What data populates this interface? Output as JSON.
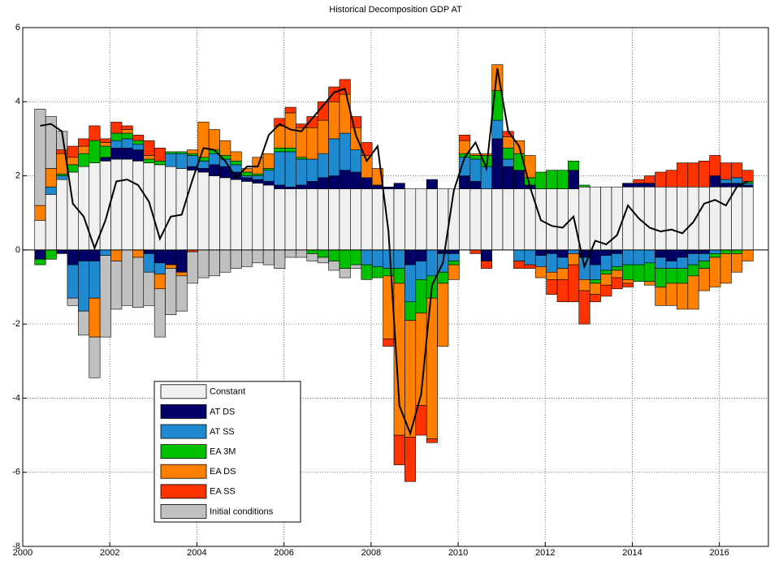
{
  "chart_data": {
    "type": "bar",
    "stacked": true,
    "title": "Historical Decomposition GDP AT",
    "x": [
      2000.4,
      2000.65,
      2000.9,
      2001.15,
      2001.4,
      2001.65,
      2001.9,
      2002.15,
      2002.4,
      2002.65,
      2002.9,
      2003.15,
      2003.4,
      2003.65,
      2003.9,
      2004.15,
      2004.4,
      2004.65,
      2004.9,
      2005.15,
      2005.4,
      2005.65,
      2005.9,
      2006.15,
      2006.4,
      2006.65,
      2006.9,
      2007.15,
      2007.4,
      2007.65,
      2007.9,
      2008.15,
      2008.4,
      2008.65,
      2008.9,
      2009.15,
      2009.4,
      2009.65,
      2009.9,
      2010.15,
      2010.4,
      2010.65,
      2010.9,
      2011.15,
      2011.4,
      2011.65,
      2011.9,
      2012.15,
      2012.4,
      2012.65,
      2012.9,
      2013.15,
      2013.4,
      2013.65,
      2013.9,
      2014.15,
      2014.4,
      2014.65,
      2014.9,
      2015.15,
      2015.4,
      2015.65,
      2015.9,
      2016.15,
      2016.4,
      2016.65
    ],
    "xlim": [
      2000,
      2017.125
    ],
    "xticks": [
      2000,
      2002,
      2004,
      2006,
      2008,
      2010,
      2012,
      2014,
      2016
    ],
    "ylim": [
      -8,
      6
    ],
    "yticks": [
      -8,
      -6,
      -4,
      -2,
      0,
      2,
      4,
      6
    ],
    "grid": true,
    "legend": "lower left",
    "series": [
      {
        "name": "Constant",
        "color": "#f0f0f0",
        "values": [
          0.8,
          1.5,
          1.9,
          2.1,
          2.25,
          2.35,
          2.4,
          2.45,
          2.45,
          2.4,
          2.35,
          2.3,
          2.25,
          2.2,
          2.15,
          2.1,
          2.0,
          1.95,
          1.9,
          1.85,
          1.8,
          1.75,
          1.65,
          1.65,
          1.65,
          1.65,
          1.65,
          1.65,
          1.65,
          1.65,
          1.65,
          1.65,
          1.65,
          1.65,
          1.65,
          1.65,
          1.65,
          1.65,
          1.65,
          1.65,
          1.65,
          1.65,
          1.65,
          1.65,
          1.65,
          1.65,
          1.65,
          1.65,
          1.65,
          1.65,
          1.7,
          1.7,
          1.7,
          1.7,
          1.7,
          1.7,
          1.7,
          1.7,
          1.7,
          1.7,
          1.7,
          1.7,
          1.7,
          1.7,
          1.7,
          1.7
        ]
      },
      {
        "name": "AT DS",
        "color": "#000066",
        "values": [
          -0.25,
          0,
          -0.1,
          -0.4,
          -0.3,
          -0.3,
          0.1,
          0.3,
          0.3,
          0.3,
          -0.1,
          -0.35,
          -0.4,
          -0.6,
          0.1,
          0.1,
          0.3,
          0.3,
          0.2,
          0.1,
          0.1,
          0.1,
          0.1,
          0.05,
          0.1,
          0.2,
          0.3,
          0.35,
          0.5,
          0.45,
          0.3,
          0.1,
          0.05,
          0.15,
          -0.4,
          -0.3,
          0.25,
          -0.1,
          -0.1,
          0.35,
          0.2,
          -0.3,
          1.35,
          0.6,
          0.5,
          0.1,
          -0.15,
          -0.1,
          -0.2,
          0.5,
          -0.2,
          -0.4,
          -0.15,
          -0.1,
          0.1,
          0.1,
          0.1,
          -0.2,
          -0.3,
          -0.2,
          -0.1,
          -0.1,
          0.3,
          0.1,
          0.1,
          0.05
        ]
      },
      {
        "name": "AT SS",
        "color": "#1f8ad0",
        "values": [
          0,
          0.2,
          0.1,
          -0.9,
          -1.35,
          -1.0,
          -0.15,
          0.2,
          0.25,
          0.15,
          -0.5,
          -0.3,
          0.35,
          0.4,
          0.3,
          0.2,
          0.3,
          0.2,
          0.2,
          0.05,
          0.1,
          0.3,
          0.9,
          0.95,
          0.7,
          0.6,
          0.65,
          1.0,
          1.0,
          0.6,
          -0.4,
          -0.45,
          -0.5,
          -0.5,
          -1.0,
          -0.5,
          -0.7,
          -0.5,
          -0.2,
          0.5,
          0.6,
          0.6,
          0.5,
          0.2,
          -0.3,
          -0.4,
          -0.3,
          -0.5,
          -0.3,
          -0.1,
          -0.6,
          -0.4,
          -0.4,
          -0.35,
          -0.4,
          -0.4,
          -0.35,
          -0.3,
          -0.2,
          -0.3,
          -0.3,
          -0.2,
          -0.1,
          0.1,
          0.15,
          0.05
        ]
      },
      {
        "name": "EA 3M",
        "color": "#00c000",
        "values": [
          -0.15,
          -0.25,
          0.05,
          0.2,
          0.35,
          0.6,
          0.3,
          0.2,
          0.15,
          0.1,
          0.1,
          0.1,
          0.05,
          0.05,
          0.05,
          0.1,
          0.1,
          0.1,
          0.1,
          0.1,
          0.05,
          0.05,
          0.1,
          0.1,
          0.05,
          -0.1,
          -0.2,
          -0.3,
          -0.5,
          -0.4,
          -0.4,
          -0.3,
          -0.2,
          -0.4,
          -0.5,
          -0.9,
          -0.6,
          -0.3,
          -0.1,
          0.1,
          0.1,
          0.3,
          0.8,
          0.3,
          0.45,
          0.2,
          0.45,
          0.5,
          0.5,
          0.25,
          0.05,
          -0.1,
          -0.1,
          -0.1,
          -0.4,
          -0.45,
          -0.5,
          -0.5,
          -0.4,
          -0.4,
          -0.3,
          -0.2,
          -0.1,
          -0.1,
          -0.1,
          0.05
        ]
      },
      {
        "name": "EA DS",
        "color": "#ff7f00",
        "values": [
          0.4,
          0.5,
          0.55,
          0.2,
          0.2,
          -1.05,
          0.1,
          -0.3,
          0.1,
          -0.2,
          0.1,
          -0.4,
          -0.1,
          -0.1,
          0.1,
          0.95,
          0.55,
          0.4,
          0.25,
          0.1,
          0.45,
          0.4,
          0.6,
          0.95,
          0.8,
          0.85,
          0.9,
          1.0,
          1.05,
          0.6,
          0.6,
          0.45,
          -1.7,
          -4.1,
          -3.15,
          -2.5,
          -3.8,
          -1.7,
          -0.4,
          0.35,
          0.05,
          0.05,
          0.7,
          0.3,
          0.35,
          0.6,
          -0.3,
          -0.2,
          -0.3,
          -0.3,
          -0.3,
          -0.3,
          -0.3,
          -0.2,
          -0.1,
          0,
          -0.1,
          -0.5,
          -0.6,
          -0.7,
          -0.9,
          -0.6,
          -0.8,
          -0.8,
          -0.5,
          -0.3
        ]
      },
      {
        "name": "EA SS",
        "color": "#ff3300",
        "values": [
          0,
          0,
          0.1,
          0.3,
          0.2,
          0.4,
          0.1,
          0.3,
          0.1,
          0.15,
          0.4,
          0.35,
          0,
          0,
          -0.05,
          0,
          0,
          0,
          0,
          0,
          0,
          0,
          0.2,
          0.15,
          0.1,
          0.3,
          0.5,
          0.4,
          0.4,
          0.3,
          0.35,
          0,
          -0.2,
          -0.8,
          -1.2,
          -0.8,
          -0.1,
          0,
          0,
          0.15,
          -0.1,
          -0.2,
          0,
          0.15,
          -0.2,
          -0.1,
          0,
          -0.4,
          -0.6,
          -1.0,
          -0.9,
          -0.2,
          -0.3,
          -0.3,
          -0.1,
          0.1,
          0.2,
          0.4,
          0.45,
          0.65,
          0.65,
          0.7,
          0.55,
          0.45,
          0.4,
          0.3
        ]
      },
      {
        "name": "Initial conditions",
        "color": "#c0c0c0",
        "values": [
          2.6,
          1.4,
          0.5,
          -0.2,
          -0.65,
          -1.1,
          -2.2,
          -1.3,
          -1.5,
          -1.35,
          -0.9,
          -1.3,
          -1.25,
          -0.95,
          -0.85,
          -0.75,
          -0.7,
          -0.6,
          -0.5,
          -0.45,
          -0.35,
          -0.4,
          -0.5,
          -0.2,
          -0.2,
          -0.2,
          -0.15,
          -0.25,
          -0.25,
          -0.1,
          0,
          0,
          0,
          0,
          0,
          0,
          0,
          0,
          0,
          0,
          0,
          0,
          0,
          0,
          0,
          0,
          0,
          0,
          0,
          0,
          0,
          0,
          0,
          0,
          0,
          0,
          0,
          0,
          0,
          0,
          0,
          0,
          0,
          0,
          0,
          0
        ]
      },
      {
        "type": "line",
        "color": "#000000",
        "values": [
          3.35,
          3.4,
          3.2,
          1.25,
          0.9,
          0.05,
          0.8,
          1.85,
          1.9,
          1.75,
          1.3,
          0.3,
          0.9,
          0.95,
          1.9,
          2.75,
          2.7,
          2.4,
          1.95,
          2.25,
          2.25,
          3.1,
          3.4,
          3.25,
          3.2,
          3.55,
          3.9,
          4.25,
          4.35,
          3.1,
          2.4,
          2.8,
          0.5,
          -4.2,
          -4.95,
          -3.9,
          -0.95,
          -0.35,
          1.6,
          2.5,
          2.9,
          2.2,
          4.9,
          3.2,
          2.8,
          1.7,
          0.8,
          0.65,
          0.6,
          0.9,
          -0.45,
          0.25,
          0.15,
          0.4,
          1.2,
          0.85,
          0.6,
          0.5,
          0.55,
          0.45,
          0.75,
          1.25,
          1.35,
          1.2,
          1.7,
          1.85
        ]
      }
    ]
  }
}
